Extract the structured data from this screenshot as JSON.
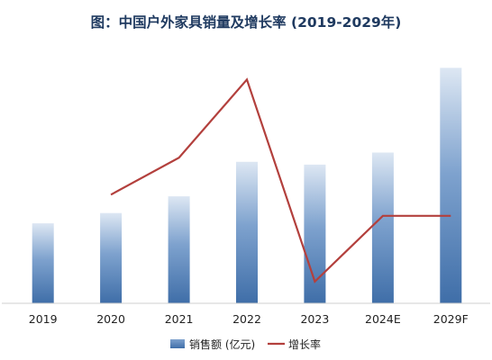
{
  "chart_data": {
    "type": "bar",
    "title": "图：中国户外家具销量及增长率 (2019-2029年)",
    "categories": [
      "2019",
      "2020",
      "2021",
      "2022",
      "2023",
      "2024E",
      "2029F"
    ],
    "series": [
      {
        "name": "销售额 (亿元)",
        "type": "bar",
        "axis": "left",
        "values": [
          86,
          97,
          115,
          152,
          149,
          162,
          253
        ]
      },
      {
        "name": "增长率",
        "type": "line",
        "axis": "right",
        "values": [
          null,
          12.5,
          18.8,
          32.1,
          -2.3,
          8.9,
          8.9
        ]
      }
    ],
    "axes": {
      "left": {
        "ylim": [
          0,
          265
        ],
        "visible": false
      },
      "right": {
        "ylim": [
          -6,
          36
        ],
        "visible": false
      }
    },
    "grid": false,
    "legend": "bottom-center",
    "colors": {
      "bar_top": "#dde7f3",
      "bar_mid": "#7ea2ce",
      "bar_bottom": "#3f6ea8",
      "line": "#b3403d",
      "title": "#1f3a60",
      "axis": "#cfcfcf"
    }
  }
}
